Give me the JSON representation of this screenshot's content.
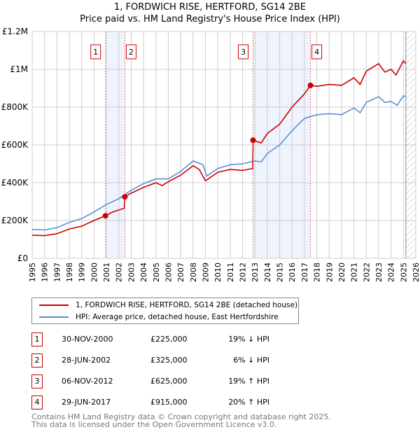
{
  "chart_data": {
    "type": "line",
    "title": "1, FORDWICH RISE, HERTFORD, SG14 2BE",
    "subtitle": "Price paid vs. HM Land Registry's House Price Index (HPI)",
    "xlim": [
      1995,
      2026
    ],
    "ylim": [
      0,
      1200000
    ],
    "yticks": [
      {
        "v": 0,
        "label": "£0"
      },
      {
        "v": 200000,
        "label": "£200K"
      },
      {
        "v": 400000,
        "label": "£400K"
      },
      {
        "v": 600000,
        "label": "£600K"
      },
      {
        "v": 800000,
        "label": "£800K"
      },
      {
        "v": 1000000,
        "label": "£1M"
      },
      {
        "v": 1200000,
        "label": "£1.2M"
      }
    ],
    "xticks": [
      1995,
      1996,
      1997,
      1998,
      1999,
      2000,
      2001,
      2002,
      2003,
      2004,
      2005,
      2006,
      2007,
      2008,
      2009,
      2010,
      2011,
      2012,
      2013,
      2014,
      2015,
      2016,
      2017,
      2018,
      2019,
      2020,
      2021,
      2022,
      2023,
      2024,
      2025,
      2026
    ],
    "grid": true,
    "shaded_periods": [
      [
        2000.92,
        2002.49
      ],
      [
        2012.85,
        2017.49
      ]
    ],
    "forecast_hatch_from": 2025.2,
    "series": [
      {
        "name": "1, FORDWICH RISE, HERTFORD, SG14 2BE (detached house)",
        "color": "#cc0000",
        "x": [
          1995,
          1996,
          1997,
          1998,
          1999,
          2000,
          2000.92,
          2001.5,
          2002.45,
          2002.49,
          2003,
          2004,
          2005,
          2005.5,
          2006,
          2007,
          2008,
          2008.5,
          2009,
          2010,
          2011,
          2012,
          2012.82,
          2012.85,
          2013.5,
          2014,
          2015,
          2016,
          2017,
          2017.49,
          2018,
          2019,
          2020,
          2021,
          2021.5,
          2022,
          2023,
          2023.5,
          2024,
          2024.4,
          2025,
          2025.2
        ],
        "y": [
          122000,
          120000,
          130000,
          155000,
          170000,
          200000,
          225000,
          245000,
          265000,
          325000,
          345000,
          375000,
          400000,
          385000,
          405000,
          440000,
          490000,
          470000,
          410000,
          455000,
          470000,
          465000,
          475000,
          625000,
          610000,
          660000,
          710000,
          800000,
          870000,
          915000,
          910000,
          920000,
          915000,
          955000,
          920000,
          990000,
          1030000,
          985000,
          1000000,
          970000,
          1045000,
          1030000
        ]
      },
      {
        "name": "HPI: Average price, detached house, East Hertfordshire",
        "color": "#5b8fd4",
        "x": [
          1995,
          1996,
          1997,
          1998,
          1999,
          2000,
          2001,
          2002,
          2003,
          2004,
          2005,
          2006,
          2007,
          2008,
          2008.8,
          2009.1,
          2010,
          2011,
          2012,
          2013,
          2013.5,
          2014,
          2015,
          2016,
          2017,
          2018,
          2019,
          2020,
          2021,
          2021.5,
          2022,
          2023,
          2023.5,
          2024,
          2024.5,
          2025,
          2025.2
        ],
        "y": [
          152000,
          150000,
          162000,
          190000,
          210000,
          245000,
          285000,
          315000,
          360000,
          395000,
          420000,
          420000,
          460000,
          515000,
          495000,
          435000,
          475000,
          495000,
          500000,
          515000,
          510000,
          555000,
          600000,
          675000,
          740000,
          760000,
          765000,
          760000,
          795000,
          770000,
          825000,
          855000,
          825000,
          830000,
          810000,
          860000,
          855000
        ]
      }
    ],
    "sales": [
      {
        "n": "1",
        "x": 2000.92,
        "y": 225000,
        "date": "30-NOV-2000",
        "price": "£225,000",
        "hpi": "19% ↓ HPI"
      },
      {
        "n": "2",
        "x": 2002.49,
        "y": 325000,
        "date": "28-JUN-2002",
        "price": "£325,000",
        "hpi": "6% ↓ HPI"
      },
      {
        "n": "3",
        "x": 2012.85,
        "y": 625000,
        "date": "06-NOV-2012",
        "price": "£625,000",
        "hpi": "19% ↑ HPI"
      },
      {
        "n": "4",
        "x": 2017.49,
        "y": 915000,
        "date": "29-JUN-2017",
        "price": "£915,000",
        "hpi": "20% ↑ HPI"
      }
    ]
  },
  "footer": {
    "line1": "Contains HM Land Registry data © Crown copyright and database right 2025.",
    "line2": "This data is licensed under the Open Government Licence v3.0."
  }
}
